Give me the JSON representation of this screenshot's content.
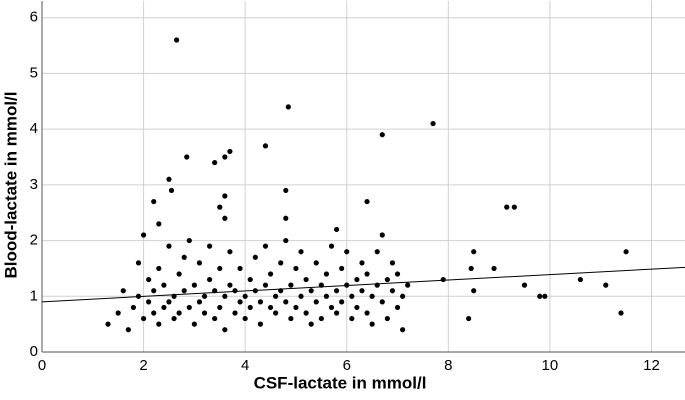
{
  "chart_data": {
    "type": "scatter",
    "x_label": "CSF-lactate in mmol/l",
    "y_label": "Blood-lactate in mmol/l",
    "xlim": [
      0,
      12.66
    ],
    "ylim": [
      0,
      6.3
    ],
    "xticks": [
      0,
      2,
      4,
      6,
      8,
      10,
      12
    ],
    "yticks": [
      0,
      1,
      2,
      3,
      4,
      5,
      6
    ],
    "grid": true,
    "color": "#000000",
    "x": [
      2.65,
      4.85,
      6.7,
      7.7,
      2.85,
      3.4,
      3.6,
      3.7,
      4.4,
      2.5,
      2.55,
      3.5,
      3.6,
      4.8,
      6.4,
      9.15,
      9.3,
      3.6,
      2.3,
      2.2,
      4.8,
      5.8,
      6.7,
      11.5,
      8.5,
      8.9,
      9.5,
      9.8,
      9.9,
      10.6,
      11.1,
      11.4,
      8.4,
      8.5,
      8.45,
      7.9,
      7.1,
      1.3,
      1.5,
      1.6,
      1.7,
      1.8,
      1.9,
      1.9,
      2.0,
      2.0,
      2.1,
      2.1,
      2.2,
      2.2,
      2.3,
      2.3,
      2.4,
      2.4,
      2.5,
      2.5,
      2.6,
      2.6,
      2.7,
      2.7,
      2.8,
      2.8,
      2.9,
      2.9,
      3.0,
      3.0,
      3.1,
      3.1,
      3.2,
      3.2,
      3.3,
      3.3,
      3.4,
      3.4,
      3.5,
      3.5,
      3.6,
      3.6,
      3.7,
      3.7,
      3.8,
      3.8,
      3.9,
      3.9,
      4.0,
      4.0,
      4.1,
      4.1,
      4.2,
      4.2,
      4.3,
      4.3,
      4.4,
      4.4,
      4.5,
      4.5,
      4.6,
      4.6,
      4.7,
      4.7,
      4.8,
      4.8,
      4.9,
      4.9,
      5.0,
      5.0,
      5.1,
      5.1,
      5.2,
      5.2,
      5.3,
      5.3,
      5.4,
      5.4,
      5.5,
      5.5,
      5.6,
      5.6,
      5.7,
      5.7,
      5.8,
      5.8,
      5.9,
      5.9,
      6.0,
      6.0,
      6.1,
      6.1,
      6.2,
      6.2,
      6.3,
      6.3,
      6.4,
      6.4,
      6.5,
      6.5,
      6.6,
      6.6,
      6.7,
      6.8,
      6.8,
      6.9,
      6.9,
      7.0,
      7.0,
      7.1,
      7.2
    ],
    "y": [
      5.6,
      4.4,
      3.9,
      4.1,
      3.5,
      3.4,
      3.5,
      3.6,
      3.7,
      3.1,
      2.9,
      2.6,
      2.8,
      2.9,
      2.7,
      2.6,
      2.6,
      2.4,
      2.3,
      2.7,
      2.4,
      2.2,
      2.1,
      1.8,
      1.8,
      1.5,
      1.2,
      1.0,
      1.0,
      1.3,
      1.2,
      0.7,
      0.6,
      1.1,
      1.5,
      1.3,
      0.4,
      0.5,
      0.7,
      1.1,
      0.4,
      0.8,
      1.0,
      1.6,
      2.1,
      0.6,
      1.3,
      0.9,
      0.7,
      1.1,
      1.5,
      0.5,
      0.8,
      1.2,
      1.9,
      0.9,
      0.6,
      1.0,
      1.4,
      0.7,
      1.7,
      1.1,
      0.8,
      2.0,
      1.2,
      0.5,
      0.9,
      1.6,
      1.0,
      0.7,
      1.3,
      1.9,
      0.6,
      1.1,
      0.8,
      1.5,
      1.0,
      0.4,
      1.2,
      1.8,
      0.7,
      1.1,
      1.5,
      0.9,
      1.0,
      0.6,
      1.3,
      0.8,
      1.1,
      1.7,
      0.5,
      0.9,
      1.2,
      1.9,
      0.8,
      1.4,
      1.0,
      0.7,
      1.6,
      1.1,
      0.9,
      2.0,
      1.2,
      0.6,
      1.5,
      0.8,
      1.0,
      1.8,
      0.7,
      1.3,
      1.1,
      0.5,
      1.6,
      0.9,
      1.2,
      0.6,
      1.4,
      1.0,
      0.8,
      1.9,
      1.1,
      0.7,
      1.5,
      0.9,
      1.2,
      1.8,
      0.6,
      1.0,
      1.3,
      0.8,
      1.6,
      1.1,
      0.7,
      1.4,
      1.0,
      0.5,
      1.2,
      1.8,
      0.9,
      1.3,
      0.6,
      1.1,
      1.6,
      0.8,
      1.4,
      1.0,
      1.2
    ],
    "trend_line": {
      "x": [
        0,
        12.66
      ],
      "y": [
        0.9,
        1.52
      ]
    }
  }
}
